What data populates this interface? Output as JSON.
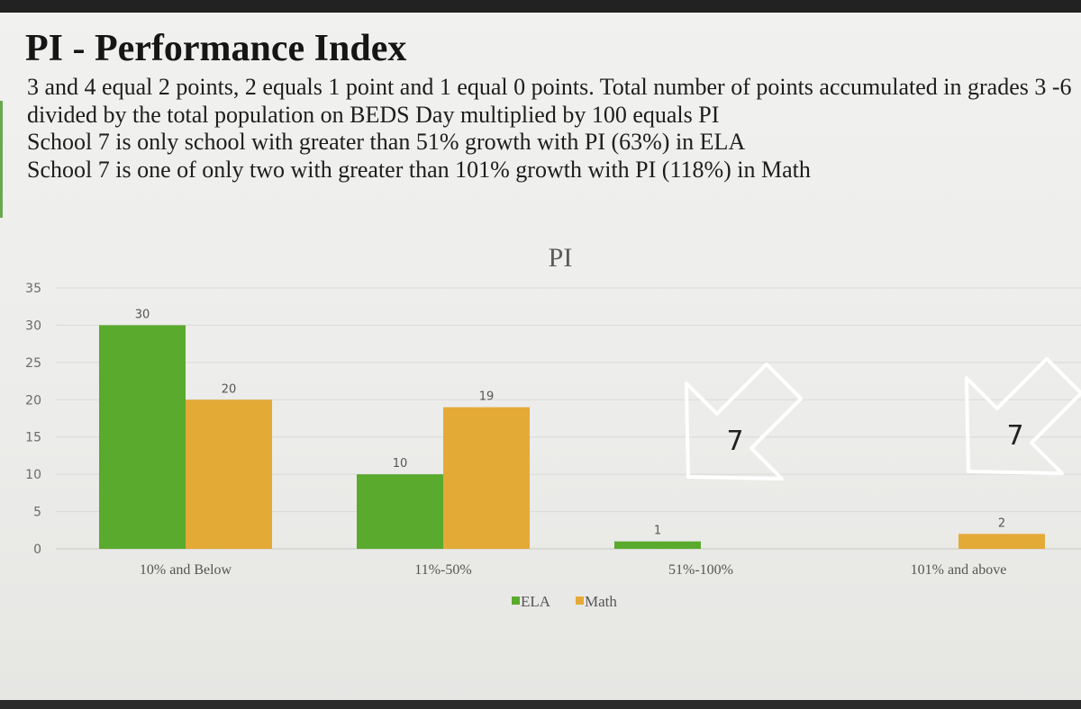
{
  "slide": {
    "title": "PI - Performance Index",
    "lines": [
      "3 and 4 equal 2 points, 2 equals 1 point and 1 equal 0 points.   Total number of points accumulated in grades 3 -6 divided by the total population on BEDS Day multiplied by 100 equals PI",
      "School 7 is only school with greater than 51% growth with PI (63%) in ELA",
      "School 7 is one of only two with greater than 101% growth with PI (118%) in Math"
    ]
  },
  "colors": {
    "ela": "#5aaa2e",
    "math": "#e4aa36",
    "grid": "#d9d9d6",
    "arrow": "#ffffff"
  },
  "annotations": [
    {
      "category": "51%-100%",
      "label": "7",
      "icon": "arrow-down-left-icon"
    },
    {
      "category": "101% and above",
      "label": "7",
      "icon": "arrow-down-left-icon"
    }
  ],
  "chart_data": {
    "type": "bar",
    "title": "PI",
    "categories": [
      "10% and Below",
      "11%-50%",
      "51%-100%",
      "101% and above"
    ],
    "series": [
      {
        "name": "ELA",
        "values": [
          30,
          10,
          1,
          null
        ]
      },
      {
        "name": "Math",
        "values": [
          20,
          19,
          null,
          2
        ]
      }
    ],
    "yticks": [
      0,
      5,
      10,
      15,
      20,
      25,
      30,
      35
    ],
    "ylim": [
      0,
      35
    ],
    "xlabel": "",
    "ylabel": "",
    "grid": true,
    "legend": "bottom-center"
  }
}
